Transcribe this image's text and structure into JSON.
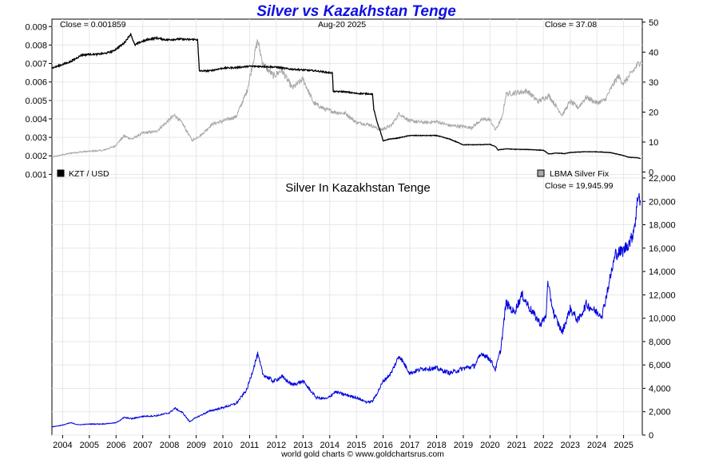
{
  "chart_data": [
    {
      "type": "line",
      "title": "Silver vs Kazakhstan Tenge",
      "date_label": "Aug-20  2025",
      "close_left": "Close = 0.001859",
      "close_right": "Close = 37.08",
      "x_ticks": [
        "2004",
        "2005",
        "2006",
        "2007",
        "2008",
        "2009",
        "2010",
        "2011",
        "2012",
        "2013",
        "2014",
        "2015",
        "2016",
        "2017",
        "2018",
        "2019",
        "2020",
        "2021",
        "2022",
        "2023",
        "2024",
        "2025"
      ],
      "left_axis": {
        "ylim": [
          0.0008,
          0.0094
        ],
        "ticks": [
          "0.001",
          "0.002",
          "0.003",
          "0.004",
          "0.005",
          "0.006",
          "0.007",
          "0.008",
          "0.009"
        ]
      },
      "right_axis": {
        "ylim": [
          -2,
          51
        ],
        "ticks": [
          "0",
          "10",
          "20",
          "30",
          "40",
          "50"
        ]
      },
      "legend_position": "bottom",
      "series": [
        {
          "name": "KZT / USD",
          "axis": "left",
          "color": "#000000",
          "legend_icon": "black-square",
          "points": [
            [
              2003.6,
              0.00675
            ],
            [
              2003.9,
              0.0069
            ],
            [
              2004.3,
              0.0071
            ],
            [
              2004.7,
              0.00745
            ],
            [
              2005.0,
              0.0075
            ],
            [
              2005.3,
              0.0075
            ],
            [
              2005.6,
              0.00755
            ],
            [
              2005.9,
              0.00768
            ],
            [
              2006.3,
              0.0081
            ],
            [
              2006.55,
              0.0086
            ],
            [
              2006.7,
              0.008
            ],
            [
              2006.9,
              0.00815
            ],
            [
              2007.2,
              0.0083
            ],
            [
              2007.5,
              0.00838
            ],
            [
              2007.9,
              0.00828
            ],
            [
              2008.3,
              0.00832
            ],
            [
              2008.7,
              0.0083
            ],
            [
              2009.05,
              0.0083
            ],
            [
              2009.12,
              0.0066
            ],
            [
              2009.5,
              0.0066
            ],
            [
              2010.0,
              0.00675
            ],
            [
              2010.5,
              0.00678
            ],
            [
              2011.0,
              0.00685
            ],
            [
              2011.5,
              0.00684
            ],
            [
              2012.0,
              0.0068
            ],
            [
              2012.5,
              0.0067
            ],
            [
              2013.0,
              0.00665
            ],
            [
              2013.5,
              0.0066
            ],
            [
              2014.0,
              0.0065
            ],
            [
              2014.1,
              0.0065
            ],
            [
              2014.13,
              0.00548
            ],
            [
              2014.5,
              0.00548
            ],
            [
              2015.0,
              0.00538
            ],
            [
              2015.6,
              0.00535
            ],
            [
              2015.65,
              0.0045
            ],
            [
              2015.8,
              0.0037
            ],
            [
              2015.9,
              0.0033
            ],
            [
              2016.0,
              0.0028
            ],
            [
              2016.2,
              0.0029
            ],
            [
              2016.5,
              0.00295
            ],
            [
              2017.0,
              0.0031
            ],
            [
              2017.5,
              0.0031
            ],
            [
              2018.0,
              0.0031
            ],
            [
              2018.5,
              0.0029
            ],
            [
              2019.0,
              0.0026
            ],
            [
              2019.5,
              0.0026
            ],
            [
              2020.0,
              0.00262
            ],
            [
              2020.2,
              0.0025
            ],
            [
              2020.3,
              0.00232
            ],
            [
              2020.6,
              0.00238
            ],
            [
              2021.0,
              0.00235
            ],
            [
              2021.5,
              0.00234
            ],
            [
              2022.0,
              0.0023
            ],
            [
              2022.2,
              0.0021
            ],
            [
              2022.5,
              0.00215
            ],
            [
              2022.8,
              0.00212
            ],
            [
              2023.0,
              0.00218
            ],
            [
              2023.5,
              0.00222
            ],
            [
              2024.0,
              0.00222
            ],
            [
              2024.5,
              0.00218
            ],
            [
              2024.9,
              0.00205
            ],
            [
              2025.2,
              0.00192
            ],
            [
              2025.5,
              0.0019
            ],
            [
              2025.64,
              0.001859
            ]
          ]
        },
        {
          "name": "LBMA Silver Fix",
          "axis": "right",
          "color": "#a8a8a8",
          "legend_icon": "gray-square",
          "points": [
            [
              2003.6,
              5.0
            ],
            [
              2004.3,
              6.3
            ],
            [
              2004.8,
              6.8
            ],
            [
              2005.5,
              7.2
            ],
            [
              2005.95,
              8.6
            ],
            [
              2006.3,
              12.0
            ],
            [
              2006.6,
              11.0
            ],
            [
              2007.0,
              13.0
            ],
            [
              2007.5,
              13.5
            ],
            [
              2008.2,
              19.0
            ],
            [
              2008.5,
              16.0
            ],
            [
              2008.85,
              10.5
            ],
            [
              2009.2,
              12.5
            ],
            [
              2009.6,
              16.0
            ],
            [
              2010.0,
              17.0
            ],
            [
              2010.5,
              18.5
            ],
            [
              2010.9,
              27.0
            ],
            [
              2011.3,
              44.0
            ],
            [
              2011.5,
              36.0
            ],
            [
              2011.9,
              32.0
            ],
            [
              2012.2,
              34.0
            ],
            [
              2012.6,
              28.0
            ],
            [
              2013.0,
              31.0
            ],
            [
              2013.4,
              23.0
            ],
            [
              2013.8,
              21.0
            ],
            [
              2014.2,
              20.0
            ],
            [
              2014.6,
              19.5
            ],
            [
              2015.0,
              16.5
            ],
            [
              2015.5,
              15.8
            ],
            [
              2015.9,
              14.0
            ],
            [
              2016.3,
              15.5
            ],
            [
              2016.6,
              19.5
            ],
            [
              2017.0,
              17.0
            ],
            [
              2017.6,
              16.5
            ],
            [
              2018.0,
              16.8
            ],
            [
              2018.5,
              15.5
            ],
            [
              2019.0,
              15.2
            ],
            [
              2019.3,
              14.8
            ],
            [
              2019.7,
              17.5
            ],
            [
              2020.0,
              17.5
            ],
            [
              2020.2,
              14.0
            ],
            [
              2020.45,
              18.0
            ],
            [
              2020.6,
              26.0
            ],
            [
              2021.0,
              26.5
            ],
            [
              2021.4,
              27.0
            ],
            [
              2021.8,
              23.5
            ],
            [
              2022.2,
              25.5
            ],
            [
              2022.7,
              19.0
            ],
            [
              2023.0,
              23.5
            ],
            [
              2023.3,
              21.5
            ],
            [
              2023.6,
              25.0
            ],
            [
              2024.0,
              23.0
            ],
            [
              2024.3,
              24.0
            ],
            [
              2024.6,
              29.0
            ],
            [
              2024.8,
              32.0
            ],
            [
              2025.0,
              29.5
            ],
            [
              2025.3,
              33.0
            ],
            [
              2025.5,
              35.5
            ],
            [
              2025.64,
              37.08
            ]
          ]
        }
      ]
    },
    {
      "type": "line",
      "title": "Silver In Kazakhstan Tenge",
      "close_label": "Close = 19,945.99",
      "x_ticks": [
        "2004",
        "2005",
        "2006",
        "2007",
        "2008",
        "2009",
        "2010",
        "2011",
        "2012",
        "2013",
        "2014",
        "2015",
        "2016",
        "2017",
        "2018",
        "2019",
        "2020",
        "2021",
        "2022",
        "2023",
        "2024",
        "2025"
      ],
      "y_axis": {
        "ylim": [
          0,
          22000
        ],
        "ticks": [
          "0",
          "2,000",
          "4,000",
          "6,000",
          "8,000",
          "10,000",
          "12,000",
          "14,000",
          "16,000",
          "18,000",
          "20,000",
          "22,000"
        ]
      },
      "series": [
        {
          "name": "Silver In Kazakhstan Tenge",
          "color": "#0000dd",
          "points": [
            [
              2003.6,
              700
            ],
            [
              2004.0,
              850
            ],
            [
              2004.3,
              1050
            ],
            [
              2004.6,
              880
            ],
            [
              2005.0,
              940
            ],
            [
              2005.5,
              950
            ],
            [
              2006.0,
              1050
            ],
            [
              2006.3,
              1500
            ],
            [
              2006.6,
              1400
            ],
            [
              2007.0,
              1600
            ],
            [
              2007.5,
              1650
            ],
            [
              2008.0,
              1900
            ],
            [
              2008.2,
              2300
            ],
            [
              2008.5,
              1900
            ],
            [
              2008.75,
              1150
            ],
            [
              2009.0,
              1500
            ],
            [
              2009.5,
              2050
            ],
            [
              2010.0,
              2350
            ],
            [
              2010.5,
              2700
            ],
            [
              2010.9,
              3900
            ],
            [
              2011.3,
              6900
            ],
            [
              2011.5,
              5200
            ],
            [
              2011.9,
              4600
            ],
            [
              2012.2,
              5000
            ],
            [
              2012.6,
              4300
            ],
            [
              2013.0,
              4600
            ],
            [
              2013.5,
              3200
            ],
            [
              2013.9,
              3100
            ],
            [
              2014.2,
              3700
            ],
            [
              2014.5,
              3500
            ],
            [
              2015.0,
              3200
            ],
            [
              2015.4,
              2800
            ],
            [
              2015.6,
              2900
            ],
            [
              2015.8,
              3700
            ],
            [
              2016.0,
              4600
            ],
            [
              2016.3,
              5300
            ],
            [
              2016.6,
              6800
            ],
            [
              2017.0,
              5300
            ],
            [
              2017.5,
              5700
            ],
            [
              2018.0,
              5700
            ],
            [
              2018.5,
              5300
            ],
            [
              2019.0,
              5700
            ],
            [
              2019.4,
              5900
            ],
            [
              2019.7,
              7000
            ],
            [
              2020.0,
              6500
            ],
            [
              2020.2,
              5600
            ],
            [
              2020.4,
              7300
            ],
            [
              2020.6,
              11300
            ],
            [
              2020.9,
              10500
            ],
            [
              2021.2,
              12000
            ],
            [
              2021.5,
              10800
            ],
            [
              2021.9,
              9500
            ],
            [
              2022.1,
              10200
            ],
            [
              2022.15,
              13000
            ],
            [
              2022.4,
              10300
            ],
            [
              2022.7,
              8800
            ],
            [
              2023.0,
              10800
            ],
            [
              2023.3,
              9800
            ],
            [
              2023.6,
              11200
            ],
            [
              2024.0,
              10500
            ],
            [
              2024.2,
              10300
            ],
            [
              2024.5,
              13500
            ],
            [
              2024.7,
              15500
            ],
            [
              2025.0,
              15800
            ],
            [
              2025.3,
              16800
            ],
            [
              2025.45,
              18500
            ],
            [
              2025.55,
              20800
            ],
            [
              2025.64,
              19946
            ]
          ]
        }
      ]
    }
  ],
  "footer": "world gold charts © www.goldchartsrus.com"
}
